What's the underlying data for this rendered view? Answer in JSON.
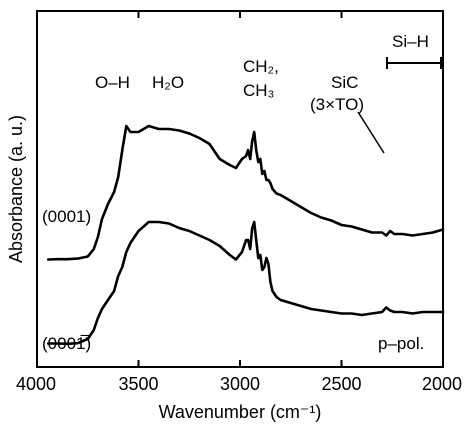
{
  "chart_data": {
    "type": "line",
    "xlabel": "Wavenumber (cm⁻¹)",
    "ylabel": "Absorbance (a. u.)",
    "xlim": [
      4000,
      2000
    ],
    "x_reversed": true,
    "x_ticks": [
      4000,
      3500,
      3000,
      2500,
      2000
    ],
    "x_tick_labels": [
      "4000",
      "3500",
      "3000",
      "2500",
      "2000"
    ],
    "ylim": [
      0,
      1
    ],
    "y_ticks_shown": false,
    "annotations": {
      "oh": "O–H",
      "h2o": "H₂O",
      "ch2": "CH₂,",
      "ch3": "CH₃",
      "sic": "SiC",
      "sic_mode": "(3×TO)",
      "sih": "Si–H",
      "polarization": "p–pol."
    },
    "series": [
      {
        "name": "(0001)",
        "x": [
          3945,
          3900,
          3850,
          3800,
          3750,
          3720,
          3700,
          3680,
          3650,
          3620,
          3600,
          3580,
          3560,
          3540,
          3500,
          3450,
          3400,
          3350,
          3300,
          3250,
          3200,
          3150,
          3100,
          3050,
          3020,
          2990,
          2970,
          2960,
          2950,
          2940,
          2930,
          2920,
          2910,
          2900,
          2890,
          2880,
          2870,
          2860,
          2850,
          2840,
          2820,
          2800,
          2750,
          2700,
          2650,
          2600,
          2550,
          2500,
          2450,
          2400,
          2350,
          2300,
          2280,
          2260,
          2240,
          2200,
          2150,
          2100,
          2050,
          2000
        ],
        "y": [
          0.235,
          0.236,
          0.236,
          0.238,
          0.245,
          0.27,
          0.31,
          0.37,
          0.42,
          0.46,
          0.51,
          0.6,
          0.68,
          0.66,
          0.66,
          0.68,
          0.67,
          0.67,
          0.665,
          0.655,
          0.64,
          0.62,
          0.57,
          0.55,
          0.54,
          0.57,
          0.58,
          0.6,
          0.57,
          0.63,
          0.66,
          0.6,
          0.56,
          0.57,
          0.52,
          0.53,
          0.5,
          0.5,
          0.49,
          0.47,
          0.455,
          0.45,
          0.43,
          0.41,
          0.39,
          0.375,
          0.365,
          0.35,
          0.345,
          0.335,
          0.325,
          0.325,
          0.315,
          0.33,
          0.32,
          0.32,
          0.315,
          0.32,
          0.325,
          0.335
        ]
      },
      {
        "name": "(0001̅)",
        "x": [
          3945,
          3900,
          3850,
          3800,
          3750,
          3720,
          3700,
          3680,
          3650,
          3620,
          3600,
          3580,
          3560,
          3540,
          3500,
          3450,
          3400,
          3350,
          3300,
          3250,
          3200,
          3150,
          3100,
          3050,
          3020,
          2990,
          2970,
          2960,
          2950,
          2940,
          2930,
          2920,
          2910,
          2900,
          2890,
          2880,
          2870,
          2860,
          2850,
          2840,
          2820,
          2800,
          2750,
          2700,
          2650,
          2600,
          2550,
          2500,
          2450,
          2400,
          2350,
          2300,
          2280,
          2260,
          2240,
          2200,
          2150,
          2100,
          2050,
          2000
        ],
        "y": [
          -0.045,
          -0.045,
          -0.046,
          -0.044,
          -0.03,
          0.0,
          0.04,
          0.07,
          0.1,
          0.13,
          0.18,
          0.21,
          0.26,
          0.29,
          0.33,
          0.36,
          0.36,
          0.355,
          0.34,
          0.33,
          0.315,
          0.3,
          0.28,
          0.25,
          0.235,
          0.26,
          0.3,
          0.3,
          0.27,
          0.34,
          0.36,
          0.3,
          0.24,
          0.25,
          0.2,
          0.21,
          0.24,
          0.22,
          0.16,
          0.13,
          0.11,
          0.1,
          0.09,
          0.08,
          0.07,
          0.065,
          0.06,
          0.055,
          0.055,
          0.05,
          0.055,
          0.06,
          0.075,
          0.065,
          0.06,
          0.06,
          0.055,
          0.06,
          0.06,
          0.06
        ]
      }
    ]
  }
}
